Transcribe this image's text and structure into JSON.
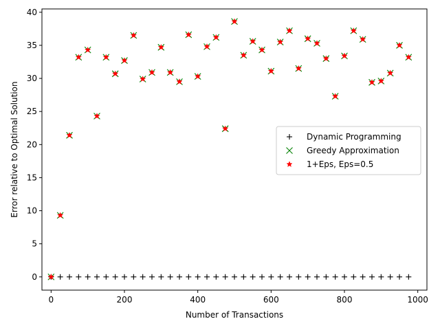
{
  "chart_data": {
    "type": "scatter",
    "title": "",
    "xlabel": "Number of Transactions",
    "ylabel": "Error relative to Optimal Solution",
    "xlim": [
      -25,
      1025
    ],
    "ylim": [
      -2,
      40.5
    ],
    "xticks": [
      0,
      200,
      400,
      600,
      800,
      1000
    ],
    "yticks": [
      0,
      5,
      10,
      15,
      20,
      25,
      30,
      35,
      40
    ],
    "grid": false,
    "legend_position": "center-right",
    "x": [
      0,
      25,
      50,
      75,
      100,
      125,
      150,
      175,
      200,
      225,
      250,
      275,
      300,
      325,
      350,
      375,
      400,
      425,
      450,
      475,
      500,
      525,
      550,
      575,
      600,
      625,
      650,
      675,
      700,
      725,
      750,
      775,
      800,
      825,
      850,
      875,
      900,
      925,
      950,
      975
    ],
    "series": [
      {
        "name": "Dynamic Programming",
        "marker": "plus",
        "color": "#000000",
        "values": [
          0,
          0,
          0,
          0,
          0,
          0,
          0,
          0,
          0,
          0,
          0,
          0,
          0,
          0,
          0,
          0,
          0,
          0,
          0,
          0,
          0,
          0,
          0,
          0,
          0,
          0,
          0,
          0,
          0,
          0,
          0,
          0,
          0,
          0,
          0,
          0,
          0,
          0,
          0,
          0
        ]
      },
      {
        "name": "Greedy Approximation",
        "marker": "x",
        "color": "#008000",
        "values": [
          0,
          9.3,
          21.4,
          33.2,
          34.3,
          24.3,
          33.2,
          30.7,
          32.7,
          36.5,
          29.9,
          30.9,
          34.7,
          30.9,
          29.5,
          36.6,
          30.3,
          34.8,
          36.2,
          22.4,
          38.6,
          33.5,
          35.6,
          34.3,
          31.1,
          35.5,
          37.2,
          31.5,
          36.0,
          35.3,
          33.0,
          27.3,
          33.4,
          37.2,
          35.9,
          29.4,
          29.6,
          30.8,
          35.0,
          33.2
        ]
      },
      {
        "name": "1+Eps, Eps=0.5",
        "marker": "star",
        "color": "#ff0000",
        "values": [
          0,
          9.3,
          21.4,
          33.2,
          34.3,
          24.3,
          33.2,
          30.7,
          32.7,
          36.5,
          29.9,
          30.9,
          34.7,
          30.9,
          29.5,
          36.6,
          30.3,
          34.8,
          36.2,
          22.4,
          38.6,
          33.5,
          35.6,
          34.3,
          31.1,
          35.5,
          37.2,
          31.5,
          36.0,
          35.3,
          33.0,
          27.3,
          33.4,
          37.2,
          35.9,
          29.4,
          29.6,
          30.8,
          35.0,
          33.2
        ]
      }
    ]
  }
}
